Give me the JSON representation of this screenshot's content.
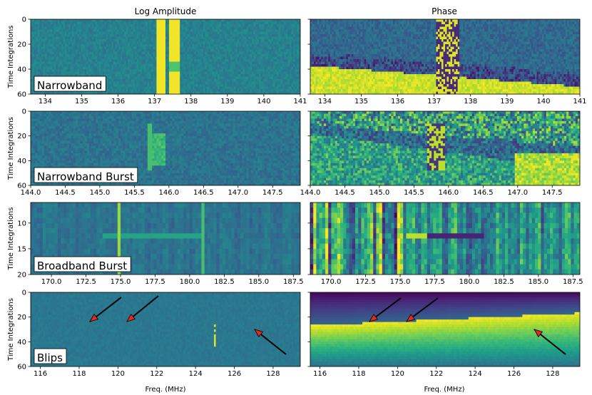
{
  "col_titles": {
    "left": "Log Amplitude",
    "right": "Phase"
  },
  "xlabel": "Freq. (MHz)",
  "ylabel": "Time Integrations",
  "chart_data": [
    {
      "type": "heatmap",
      "panel": "Log Amplitude",
      "label": "Narrowband",
      "xlim": [
        133.6,
        141.0
      ],
      "ylim": [
        0,
        60
      ],
      "xticks": [
        "134",
        "135",
        "136",
        "137",
        "138",
        "139",
        "140",
        "141"
      ],
      "xtick_values": [
        134,
        135,
        136,
        137,
        138,
        139,
        140,
        141
      ],
      "yticks": [
        "0",
        "20",
        "40",
        "60"
      ],
      "ytick_values": [
        0,
        20,
        40,
        60
      ],
      "colormap": "viridis",
      "features": [
        {
          "kind": "vertical-band",
          "x": [
            137.05,
            137.3
          ]
        },
        {
          "kind": "vertical-band",
          "x": [
            137.4,
            137.7
          ]
        }
      ]
    },
    {
      "type": "heatmap",
      "panel": "Phase",
      "label": "",
      "xlim": [
        133.6,
        141.0
      ],
      "ylim": [
        0,
        60
      ],
      "xticks": [
        "134",
        "135",
        "136",
        "137",
        "138",
        "139",
        "140",
        "141"
      ],
      "xtick_values": [
        134,
        135,
        136,
        137,
        138,
        139,
        140,
        141
      ],
      "yticks": [
        "",
        "",
        "",
        ""
      ],
      "ytick_values": [
        0,
        20,
        40,
        60
      ],
      "colormap": "viridis"
    },
    {
      "type": "heatmap",
      "panel": "Log Amplitude",
      "label": "Narrowband Burst",
      "xlim": [
        144.0,
        147.9
      ],
      "ylim": [
        0,
        60
      ],
      "xticks": [
        "144.0",
        "144.5",
        "145.0",
        "145.5",
        "146.0",
        "146.5",
        "147.0",
        "147.5"
      ],
      "xtick_values": [
        144.0,
        144.5,
        145.0,
        145.5,
        146.0,
        146.5,
        147.0,
        147.5
      ],
      "yticks": [
        "0",
        "20",
        "40",
        "60"
      ],
      "ytick_values": [
        0,
        20,
        40,
        60
      ],
      "colormap": "viridis"
    },
    {
      "type": "heatmap",
      "panel": "Phase",
      "label": "",
      "xlim": [
        144.0,
        147.9
      ],
      "ylim": [
        0,
        60
      ],
      "xticks": [
        "144.0",
        "144.5",
        "145.0",
        "145.5",
        "146.0",
        "146.5",
        "147.0",
        "147.5"
      ],
      "xtick_values": [
        144.0,
        144.5,
        145.0,
        145.5,
        146.0,
        146.5,
        147.0,
        147.5
      ],
      "yticks": [
        "",
        "",
        "",
        ""
      ],
      "ytick_values": [
        0,
        20,
        40,
        60
      ],
      "colormap": "viridis"
    },
    {
      "type": "heatmap",
      "panel": "Log Amplitude",
      "label": "Broadband Burst",
      "xlim": [
        168.5,
        188.0
      ],
      "ylim": [
        6,
        20
      ],
      "xticks": [
        "170.0",
        "172.5",
        "175.0",
        "177.5",
        "180.0",
        "182.5",
        "185.0",
        "187.5"
      ],
      "xtick_values": [
        170.0,
        172.5,
        175.0,
        177.5,
        180.0,
        182.5,
        185.0,
        187.5
      ],
      "yticks": [
        "10",
        "15",
        "20"
      ],
      "ytick_values": [
        10,
        15,
        20
      ],
      "colormap": "viridis"
    },
    {
      "type": "heatmap",
      "panel": "Phase",
      "label": "",
      "xlim": [
        168.5,
        188.0
      ],
      "ylim": [
        6,
        20
      ],
      "xticks": [
        "170.0",
        "172.5",
        "175.0",
        "177.5",
        "180.0",
        "182.5",
        "185.0",
        "187.5"
      ],
      "xtick_values": [
        170.0,
        172.5,
        175.0,
        177.5,
        180.0,
        182.5,
        185.0,
        187.5
      ],
      "yticks": [
        "",
        "",
        ""
      ],
      "ytick_values": [
        10,
        15,
        20
      ],
      "colormap": "viridis"
    },
    {
      "type": "heatmap",
      "panel": "Log Amplitude",
      "label": "Blips",
      "xlim": [
        115.5,
        129.4
      ],
      "ylim": [
        0,
        60
      ],
      "xticks": [
        "116",
        "118",
        "120",
        "122",
        "124",
        "126",
        "128"
      ],
      "xtick_values": [
        116,
        118,
        120,
        122,
        124,
        126,
        128
      ],
      "yticks": [
        "0",
        "20",
        "40",
        "60"
      ],
      "ytick_values": [
        0,
        20,
        40,
        60
      ],
      "colormap": "viridis"
    },
    {
      "type": "heatmap",
      "panel": "Phase",
      "label": "",
      "xlim": [
        115.5,
        129.4
      ],
      "ylim": [
        0,
        60
      ],
      "xticks": [
        "116",
        "118",
        "120",
        "122",
        "124",
        "126",
        "128"
      ],
      "xtick_values": [
        116,
        118,
        120,
        122,
        124,
        126,
        128
      ],
      "yticks": [
        "",
        "",
        "",
        ""
      ],
      "ytick_values": [
        0,
        20,
        40,
        60
      ],
      "colormap": "viridis"
    }
  ]
}
